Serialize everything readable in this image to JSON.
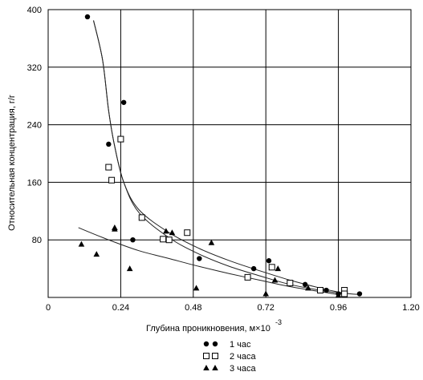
{
  "chart_data": {
    "type": "scatter",
    "xlabel": "Глубина проникновения, м×10",
    "xlabel_exponent": "-3",
    "ylabel": "Относительная концентрация, г/г",
    "xlim": [
      0,
      1.2
    ],
    "ylim": [
      0,
      400
    ],
    "x_ticks": [
      "0",
      "0.24",
      "0.48",
      "0.72",
      "0.96",
      "1.20"
    ],
    "y_ticks": [
      "80",
      "160",
      "240",
      "320",
      "400"
    ],
    "grid": true,
    "legend_position": "bottom-center",
    "series": [
      {
        "name": "1 час",
        "marker": "circle",
        "points": [
          [
            0.13,
            390
          ],
          [
            0.2,
            213
          ],
          [
            0.25,
            271
          ],
          [
            0.28,
            80
          ],
          [
            0.5,
            54
          ],
          [
            0.68,
            40
          ],
          [
            0.73,
            51
          ],
          [
            0.85,
            18
          ],
          [
            0.92,
            10
          ],
          [
            0.96,
            5
          ],
          [
            1.03,
            5
          ]
        ],
        "curve": [
          [
            0.15,
            385
          ],
          [
            0.18,
            330
          ],
          [
            0.2,
            260
          ],
          [
            0.22,
            210
          ],
          [
            0.25,
            160
          ],
          [
            0.3,
            122
          ],
          [
            0.4,
            90
          ],
          [
            0.5,
            68
          ],
          [
            0.6,
            51
          ],
          [
            0.7,
            37
          ],
          [
            0.8,
            24
          ],
          [
            0.9,
            13
          ],
          [
            0.98,
            6
          ],
          [
            1.03,
            4
          ]
        ]
      },
      {
        "name": "2 часа",
        "marker": "square",
        "points": [
          [
            0.2,
            181
          ],
          [
            0.21,
            163
          ],
          [
            0.24,
            220
          ],
          [
            0.31,
            111
          ],
          [
            0.38,
            81
          ],
          [
            0.4,
            80
          ],
          [
            0.46,
            90
          ],
          [
            0.66,
            28
          ],
          [
            0.74,
            42
          ],
          [
            0.8,
            20
          ],
          [
            0.9,
            10
          ],
          [
            0.98,
            10
          ],
          [
            0.98,
            5
          ]
        ],
        "curve": [
          [
            0.15,
            385
          ],
          [
            0.18,
            330
          ],
          [
            0.2,
            260
          ],
          [
            0.22,
            210
          ],
          [
            0.25,
            160
          ],
          [
            0.3,
            118
          ],
          [
            0.4,
            83
          ],
          [
            0.5,
            60
          ],
          [
            0.6,
            43
          ],
          [
            0.7,
            30
          ],
          [
            0.8,
            18
          ],
          [
            0.9,
            10
          ],
          [
            0.98,
            5
          ]
        ]
      },
      {
        "name": "3 часа",
        "marker": "triangle",
        "points": [
          [
            0.11,
            74
          ],
          [
            0.16,
            60
          ],
          [
            0.22,
            95
          ],
          [
            0.22,
            97
          ],
          [
            0.27,
            40
          ],
          [
            0.39,
            92
          ],
          [
            0.41,
            90
          ],
          [
            0.49,
            13
          ],
          [
            0.54,
            76
          ],
          [
            0.72,
            5
          ],
          [
            0.75,
            24
          ],
          [
            0.76,
            40
          ],
          [
            0.86,
            13
          ],
          [
            0.96,
            3
          ]
        ],
        "curve": [
          [
            0.1,
            97
          ],
          [
            0.2,
            80
          ],
          [
            0.3,
            65
          ],
          [
            0.4,
            54
          ],
          [
            0.5,
            43
          ],
          [
            0.6,
            33
          ],
          [
            0.7,
            24
          ],
          [
            0.8,
            15
          ],
          [
            0.9,
            8
          ],
          [
            0.96,
            4
          ]
        ]
      }
    ]
  }
}
